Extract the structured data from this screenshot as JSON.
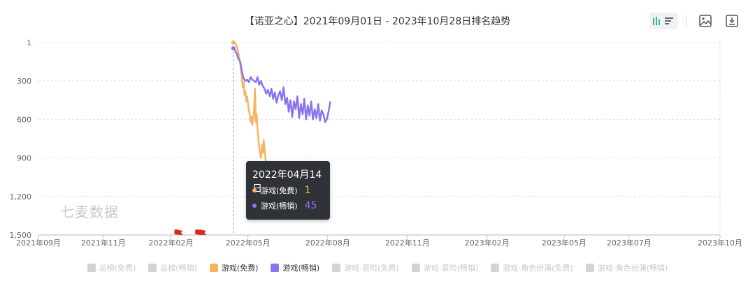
{
  "title": "【诺亚之心】2021年09月01日 - 2023年10月28日排名趋势",
  "watermark": "七麦数据",
  "toolbar": {
    "icons": [
      "bar-chart-icon",
      "image-icon",
      "download-icon"
    ]
  },
  "tooltip": {
    "date": "2022年04月14日",
    "rows": [
      {
        "label": "游戏(免费)",
        "value": "1",
        "color": "#f5b461"
      },
      {
        "label": "游戏(畅销)",
        "value": "45",
        "color": "#8b74f0"
      }
    ]
  },
  "legend": [
    {
      "label": "总榜(免费)",
      "active": false,
      "color": "#d3d3d3"
    },
    {
      "label": "总榜(畅销)",
      "active": false,
      "color": "#d3d3d3"
    },
    {
      "label": "游戏(免费)",
      "active": true,
      "color": "#f5b461"
    },
    {
      "label": "游戏(畅销)",
      "active": true,
      "color": "#8b74f0"
    },
    {
      "label": "游戏-冒险(免费)",
      "active": false,
      "color": "#d3d3d3"
    },
    {
      "label": "游戏-冒险(畅销)",
      "active": false,
      "color": "#d3d3d3"
    },
    {
      "label": "游戏-角色扮演(免费)",
      "active": false,
      "color": "#d3d3d3"
    },
    {
      "label": "游戏-角色扮演(畅销)",
      "active": false,
      "color": "#d3d3d3"
    }
  ],
  "chart_data": {
    "type": "line",
    "title": "【诺亚之心】2021年09月01日 - 2023年10月28日排名趋势",
    "y_inverted": true,
    "ylim": [
      1,
      1500
    ],
    "y_ticks": [
      "1",
      "300",
      "600",
      "900",
      "1,200",
      "1,500"
    ],
    "y_tick_values": [
      1,
      300,
      600,
      900,
      1200,
      1500
    ],
    "xlim": [
      "2021-09-01",
      "2023-10-28"
    ],
    "x_ticks": [
      "2021年09月",
      "2021年11月",
      "2022年02月",
      "2022年05月",
      "2022年08月",
      "2022年11月",
      "2023年02月",
      "2023年05月",
      "2023年07月",
      "2023年10月"
    ],
    "x_tick_values": [
      "2021-09-01",
      "2021-11-15",
      "2022-02-01",
      "2022-05-01",
      "2022-08-01",
      "2022-11-01",
      "2023-02-01",
      "2023-05-01",
      "2023-07-15",
      "2023-10-28"
    ],
    "grid": true,
    "tooltip_date": "2022-04-14",
    "flag_marker_dates": [
      "2022-02-05",
      "2022-02-07",
      "2022-03-01",
      "2022-03-03",
      "2022-03-06"
    ],
    "series": [
      {
        "name": "游戏(免费)",
        "color": "#f5b461",
        "points": [
          [
            "2022-04-14",
            1
          ],
          [
            "2022-04-16",
            5
          ],
          [
            "2022-04-18",
            30
          ],
          [
            "2022-04-20",
            90
          ],
          [
            "2022-04-22",
            170
          ],
          [
            "2022-04-24",
            280
          ],
          [
            "2022-04-25",
            350
          ],
          [
            "2022-04-26",
            310
          ],
          [
            "2022-04-27",
            410
          ],
          [
            "2022-04-28",
            380
          ],
          [
            "2022-04-29",
            460
          ],
          [
            "2022-04-30",
            420
          ],
          [
            "2022-05-01",
            480
          ],
          [
            "2022-05-02",
            530
          ],
          [
            "2022-05-03",
            560
          ],
          [
            "2022-05-04",
            620
          ],
          [
            "2022-05-05",
            580
          ],
          [
            "2022-05-06",
            640
          ],
          [
            "2022-05-07",
            600
          ],
          [
            "2022-05-08",
            520
          ],
          [
            "2022-05-09",
            360
          ],
          [
            "2022-05-10",
            620
          ],
          [
            "2022-05-11",
            560
          ],
          [
            "2022-05-12",
            680
          ],
          [
            "2022-05-13",
            760
          ],
          [
            "2022-05-14",
            820
          ],
          [
            "2022-05-15",
            870
          ],
          [
            "2022-05-16",
            900
          ],
          [
            "2022-05-17",
            800
          ],
          [
            "2022-05-18",
            860
          ],
          [
            "2022-05-19",
            760
          ],
          [
            "2022-05-20",
            820
          ],
          [
            "2022-05-21",
            900
          ],
          [
            "2022-05-22",
            940
          ]
        ]
      },
      {
        "name": "游戏(畅销)",
        "color": "#8b74f0",
        "points": [
          [
            "2022-04-14",
            45
          ],
          [
            "2022-04-16",
            60
          ],
          [
            "2022-04-18",
            90
          ],
          [
            "2022-04-20",
            130
          ],
          [
            "2022-04-22",
            150
          ],
          [
            "2022-04-24",
            230
          ],
          [
            "2022-04-26",
            280
          ],
          [
            "2022-04-28",
            300
          ],
          [
            "2022-04-30",
            290
          ],
          [
            "2022-05-02",
            310
          ],
          [
            "2022-05-04",
            270
          ],
          [
            "2022-05-06",
            290
          ],
          [
            "2022-05-08",
            300
          ],
          [
            "2022-05-10",
            310
          ],
          [
            "2022-05-12",
            270
          ],
          [
            "2022-05-14",
            330
          ],
          [
            "2022-05-16",
            300
          ],
          [
            "2022-05-18",
            340
          ],
          [
            "2022-05-20",
            360
          ],
          [
            "2022-05-22",
            400
          ],
          [
            "2022-05-24",
            370
          ],
          [
            "2022-05-26",
            420
          ],
          [
            "2022-05-28",
            360
          ],
          [
            "2022-05-30",
            440
          ],
          [
            "2022-06-01",
            390
          ],
          [
            "2022-06-03",
            470
          ],
          [
            "2022-06-05",
            410
          ],
          [
            "2022-06-07",
            380
          ],
          [
            "2022-06-09",
            450
          ],
          [
            "2022-06-11",
            350
          ],
          [
            "2022-06-13",
            480
          ],
          [
            "2022-06-15",
            430
          ],
          [
            "2022-06-17",
            540
          ],
          [
            "2022-06-19",
            450
          ],
          [
            "2022-06-21",
            580
          ],
          [
            "2022-06-23",
            460
          ],
          [
            "2022-06-25",
            520
          ],
          [
            "2022-06-27",
            420
          ],
          [
            "2022-06-29",
            590
          ],
          [
            "2022-07-01",
            480
          ],
          [
            "2022-07-03",
            560
          ],
          [
            "2022-07-05",
            440
          ],
          [
            "2022-07-07",
            600
          ],
          [
            "2022-07-09",
            490
          ],
          [
            "2022-07-11",
            570
          ],
          [
            "2022-07-13",
            460
          ],
          [
            "2022-07-15",
            600
          ],
          [
            "2022-07-17",
            520
          ],
          [
            "2022-07-19",
            590
          ],
          [
            "2022-07-21",
            480
          ],
          [
            "2022-07-23",
            610
          ],
          [
            "2022-07-25",
            530
          ],
          [
            "2022-07-27",
            560
          ],
          [
            "2022-07-29",
            620
          ],
          [
            "2022-07-31",
            600
          ],
          [
            "2022-08-02",
            540
          ],
          [
            "2022-08-04",
            460
          ]
        ]
      }
    ]
  }
}
